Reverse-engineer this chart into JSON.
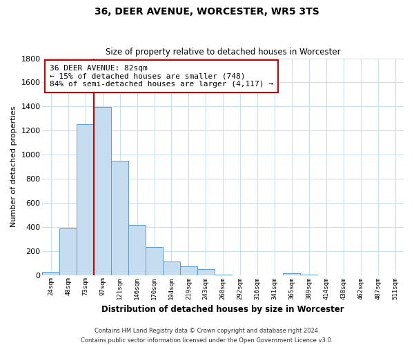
{
  "title": "36, DEER AVENUE, WORCESTER, WR5 3TS",
  "subtitle": "Size of property relative to detached houses in Worcester",
  "xlabel": "Distribution of detached houses by size in Worcester",
  "ylabel": "Number of detached properties",
  "bar_labels": [
    "24sqm",
    "48sqm",
    "73sqm",
    "97sqm",
    "121sqm",
    "146sqm",
    "170sqm",
    "194sqm",
    "219sqm",
    "243sqm",
    "268sqm",
    "292sqm",
    "316sqm",
    "341sqm",
    "365sqm",
    "389sqm",
    "414sqm",
    "438sqm",
    "462sqm",
    "487sqm",
    "511sqm"
  ],
  "bar_values": [
    25,
    390,
    1255,
    1395,
    950,
    415,
    235,
    110,
    70,
    50,
    5,
    0,
    0,
    0,
    15,
    5,
    0,
    0,
    0,
    0,
    0
  ],
  "bar_color": "#c6ddf0",
  "bar_edge_color": "#5b9bd5",
  "vline_color": "#cc0000",
  "vline_position": 2.5,
  "annotation_line1": "36 DEER AVENUE: 82sqm",
  "annotation_line2": "← 15% of detached houses are smaller (748)",
  "annotation_line3": "84% of semi-detached houses are larger (4,117) →",
  "annotation_box_color": "#ffffff",
  "annotation_box_edge": "#cc0000",
  "ylim": [
    0,
    1800
  ],
  "yticks": [
    0,
    200,
    400,
    600,
    800,
    1000,
    1200,
    1400,
    1600,
    1800
  ],
  "footer_line1": "Contains HM Land Registry data © Crown copyright and database right 2024.",
  "footer_line2": "Contains public sector information licensed under the Open Government Licence v3.0.",
  "background_color": "#ffffff",
  "grid_color": "#c8dff0"
}
